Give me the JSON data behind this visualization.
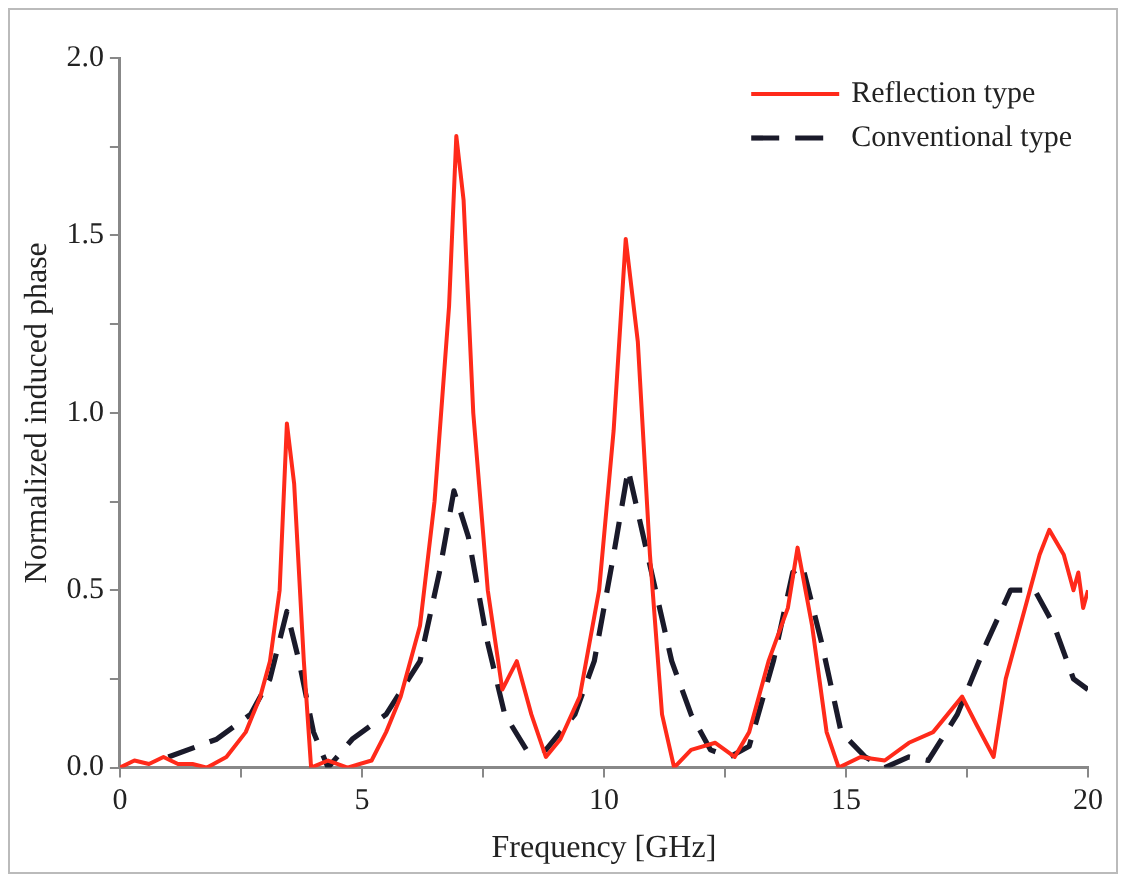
{
  "chart_data": {
    "type": "line",
    "xlabel": "Frequency [GHz]",
    "ylabel": "Normalized induced phase",
    "xlim": [
      0,
      20
    ],
    "xticks": [
      0,
      {
        "value": 2.5,
        "label": null
      },
      5,
      {
        "value": 7.5,
        "label": null
      },
      10,
      {
        "value": 12.5,
        "label": null
      },
      15,
      {
        "value": 17.5,
        "label": null
      },
      20
    ],
    "ylim": [
      0,
      2.0
    ],
    "yticks": [
      {
        "value": 0,
        "label": "0.0"
      },
      {
        "value": 0.25,
        "label": null
      },
      0.5,
      {
        "value": 0.75,
        "label": null
      },
      {
        "value": 1,
        "label": "1.0"
      },
      {
        "value": 1.25,
        "label": null
      },
      1.5,
      {
        "value": 1.75,
        "label": null
      },
      {
        "value": 2,
        "label": "2.0"
      }
    ],
    "grid": false,
    "legend": "top right",
    "marker": "none",
    "series": [
      {
        "name": "Reflection type",
        "color": "#ff2a1a",
        "line_style": "solid",
        "x": [
          0,
          0.3,
          0.6,
          0.9,
          1.2,
          1.5,
          1.8,
          2.2,
          2.6,
          2.9,
          3.1,
          3.3,
          3.45,
          3.6,
          3.8,
          3.95,
          4.3,
          4.7,
          5.2,
          5.5,
          5.8,
          6.2,
          6.5,
          6.8,
          6.95,
          7.1,
          7.3,
          7.6,
          7.9,
          8.2,
          8.5,
          8.8,
          9.1,
          9.5,
          9.9,
          10.2,
          10.45,
          10.7,
          10.95,
          11.2,
          11.45,
          11.8,
          12.3,
          12.7,
          13.0,
          13.4,
          13.8,
          14.0,
          14.3,
          14.6,
          14.85,
          15.3,
          15.8,
          16.3,
          16.8,
          17.1,
          17.4,
          17.7,
          18.05,
          18.3,
          18.7,
          19.0,
          19.2,
          19.5,
          19.7,
          19.8,
          19.9,
          20
        ],
        "values": [
          0,
          0.02,
          0.01,
          0.03,
          0.01,
          0.01,
          0,
          0.03,
          0.1,
          0.2,
          0.3,
          0.5,
          0.97,
          0.8,
          0.3,
          0,
          0.02,
          0,
          0.02,
          0.1,
          0.2,
          0.4,
          0.75,
          1.3,
          1.78,
          1.6,
          1.0,
          0.5,
          0.22,
          0.3,
          0.15,
          0.03,
          0.08,
          0.2,
          0.5,
          0.95,
          1.49,
          1.2,
          0.6,
          0.15,
          0,
          0.05,
          0.07,
          0.03,
          0.1,
          0.3,
          0.45,
          0.62,
          0.4,
          0.1,
          0,
          0.03,
          0.02,
          0.07,
          0.1,
          0.15,
          0.2,
          0.12,
          0.03,
          0.25,
          0.45,
          0.6,
          0.67,
          0.6,
          0.5,
          0.55,
          0.45,
          0.5
        ]
      },
      {
        "name": "Conventional type",
        "color": "#1a1a2a",
        "line_style": "dashed",
        "x": [
          1.0,
          2.0,
          2.7,
          3.1,
          3.45,
          3.7,
          4.0,
          4.3,
          4.8,
          5.5,
          6.2,
          6.6,
          6.9,
          7.2,
          7.6,
          7.95,
          8.4,
          8.8,
          9.4,
          9.8,
          10.2,
          10.5,
          10.9,
          11.4,
          11.8,
          12.2,
          12.6,
          13.0,
          13.5,
          13.9,
          14.1,
          14.5,
          14.9,
          15.4,
          15.8,
          16.3,
          16.7,
          17.3,
          17.9,
          18.4,
          18.9,
          19.3,
          19.7,
          20
        ],
        "values": [
          0.03,
          0.08,
          0.15,
          0.25,
          0.44,
          0.3,
          0.1,
          0,
          0.08,
          0.15,
          0.3,
          0.55,
          0.78,
          0.65,
          0.35,
          0.15,
          0.05,
          0.05,
          0.15,
          0.3,
          0.6,
          0.84,
          0.6,
          0.3,
          0.15,
          0.05,
          0.03,
          0.06,
          0.3,
          0.55,
          0.57,
          0.35,
          0.1,
          0.03,
          0,
          0.03,
          0.02,
          0.15,
          0.35,
          0.5,
          0.5,
          0.4,
          0.25,
          0.22
        ]
      }
    ]
  }
}
